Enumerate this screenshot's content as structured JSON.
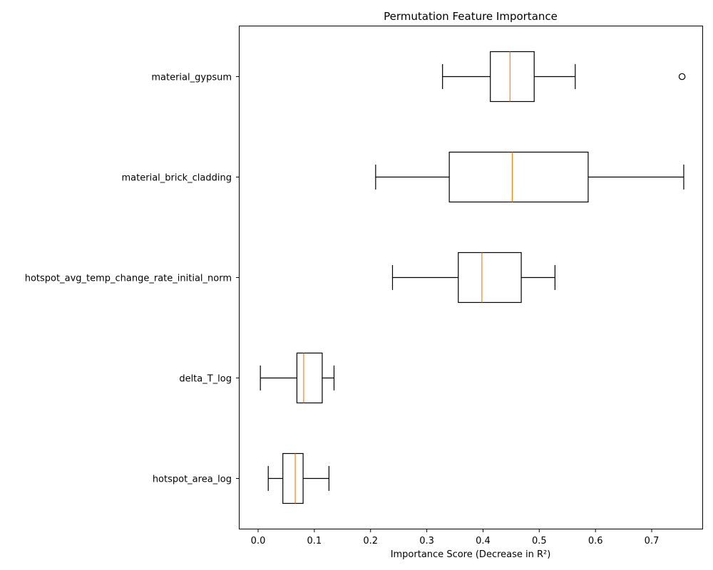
{
  "chart_data": {
    "type": "boxplot",
    "orientation": "horizontal",
    "title": "Permutation Feature Importance",
    "xlabel": "Importance Score (Decrease in R²)",
    "ylabel": "",
    "xlim": [
      -0.033,
      0.79
    ],
    "xticks": [
      0.0,
      0.1,
      0.2,
      0.3,
      0.4,
      0.5,
      0.6,
      0.7
    ],
    "xtick_labels": [
      "0.0",
      "0.1",
      "0.2",
      "0.3",
      "0.4",
      "0.5",
      "0.6",
      "0.7"
    ],
    "grid": false,
    "box_color": "#000000",
    "median_color": "#ff7f0e",
    "categories": [
      "material_gypsum",
      "material_brick_cladding",
      "hotspot_avg_temp_change_rate_initial_norm",
      "delta_T_log",
      "hotspot_area_log"
    ],
    "boxes": [
      {
        "label": "material_gypsum",
        "whislo": 0.328,
        "q1": 0.413,
        "med": 0.448,
        "q3": 0.491,
        "whishi": 0.564,
        "fliers": [
          0.754
        ]
      },
      {
        "label": "material_brick_cladding",
        "whislo": 0.209,
        "q1": 0.34,
        "med": 0.452,
        "q3": 0.587,
        "whishi": 0.757,
        "fliers": []
      },
      {
        "label": "hotspot_avg_temp_change_rate_initial_norm",
        "whislo": 0.239,
        "q1": 0.356,
        "med": 0.398,
        "q3": 0.468,
        "whishi": 0.528,
        "fliers": []
      },
      {
        "label": "delta_T_log",
        "whislo": 0.004,
        "q1": 0.069,
        "med": 0.081,
        "q3": 0.114,
        "whishi": 0.135,
        "fliers": []
      },
      {
        "label": "hotspot_area_log",
        "whislo": 0.018,
        "q1": 0.044,
        "med": 0.066,
        "q3": 0.08,
        "whishi": 0.126,
        "fliers": []
      }
    ]
  }
}
